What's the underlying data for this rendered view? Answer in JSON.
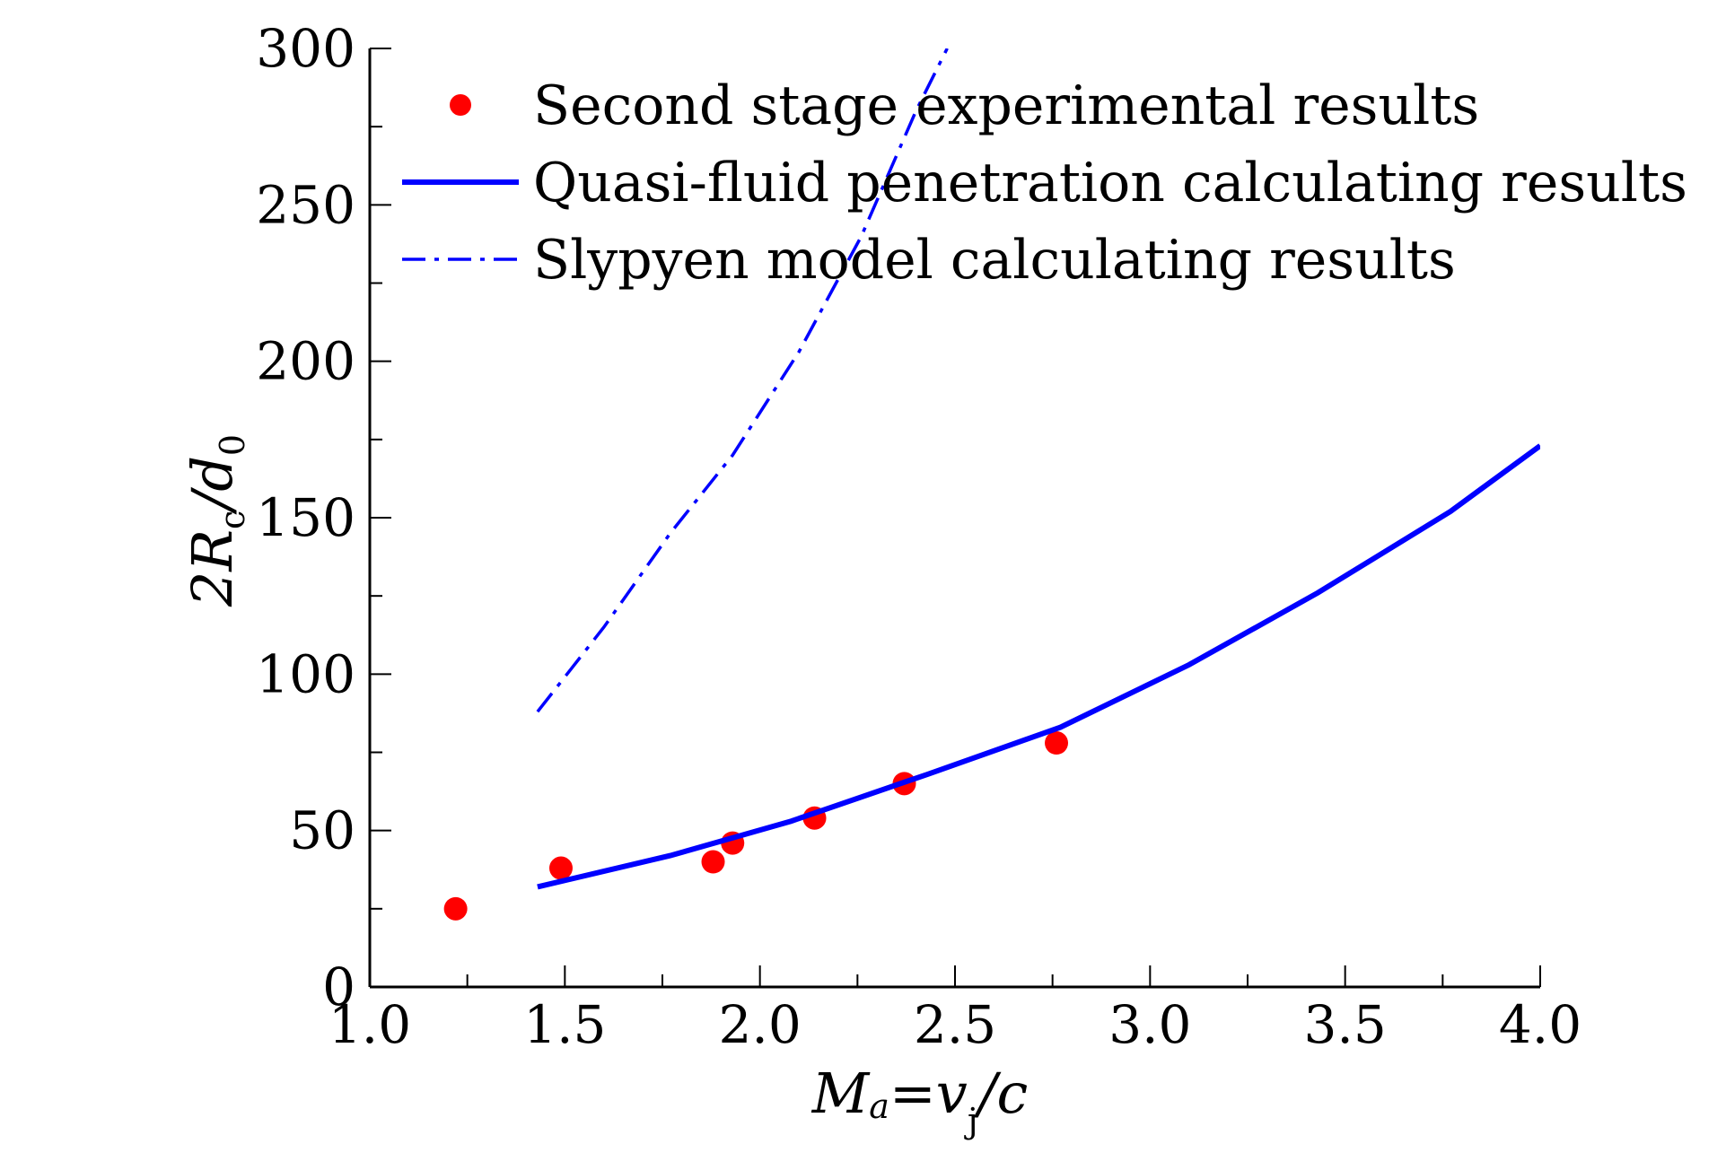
{
  "chart_data": {
    "type": "line",
    "title": "",
    "xlabel": {
      "main": "M",
      "sub": "a",
      "rest": "=v",
      "sub2": "j",
      "tail": "/c"
    },
    "ylabel": {
      "lead": "2R",
      "sub": "c",
      "mid": "/d",
      "sub2": "0"
    },
    "xlim": [
      1.0,
      4.0
    ],
    "ylim": [
      0,
      300
    ],
    "xticks": [
      "1.0",
      "1.5",
      "2.0",
      "2.5",
      "3.0",
      "3.5",
      "4.0"
    ],
    "yticks": [
      "0",
      "50",
      "100",
      "150",
      "200",
      "250",
      "300"
    ],
    "grid": false,
    "legend_position": "top-left",
    "series": [
      {
        "name": "Second stage experimental results",
        "kind": "scatter",
        "color": "#ff0000",
        "points": [
          [
            1.22,
            25
          ],
          [
            1.49,
            38
          ],
          [
            1.88,
            40
          ],
          [
            1.93,
            46
          ],
          [
            2.14,
            54
          ],
          [
            2.37,
            65
          ],
          [
            2.76,
            78
          ]
        ]
      },
      {
        "name": "Quasi-fluid penetration calculating results",
        "kind": "line",
        "style": "solid",
        "color": "#0000ff",
        "points": [
          [
            1.43,
            32
          ],
          [
            1.77,
            42
          ],
          [
            2.08,
            53
          ],
          [
            2.43,
            68
          ],
          [
            2.77,
            83
          ],
          [
            3.1,
            103
          ],
          [
            3.43,
            126
          ],
          [
            3.77,
            152
          ],
          [
            4.0,
            173
          ]
        ]
      },
      {
        "name": "Slypyen model calculating results",
        "kind": "line",
        "style": "dashdot",
        "color": "#0000ff",
        "points": [
          [
            1.43,
            88
          ],
          [
            1.6,
            115
          ],
          [
            1.77,
            145
          ],
          [
            1.93,
            170
          ],
          [
            2.1,
            203
          ],
          [
            2.26,
            240
          ],
          [
            2.4,
            280
          ],
          [
            2.48,
            300
          ]
        ]
      }
    ]
  }
}
